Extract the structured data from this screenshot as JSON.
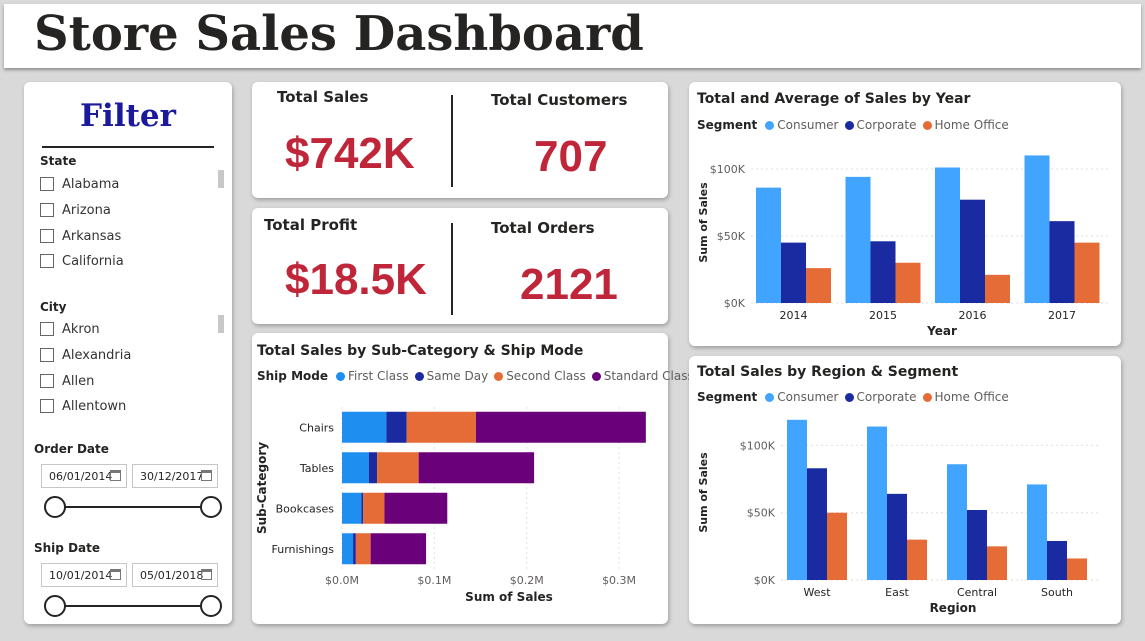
{
  "title": "Store Sales Dashboard",
  "filter": {
    "title": "Filter",
    "state": {
      "label": "State",
      "items": [
        "Alabama",
        "Arizona",
        "Arkansas",
        "California"
      ]
    },
    "city": {
      "label": "City",
      "items": [
        "Akron",
        "Alexandria",
        "Allen",
        "Allentown"
      ]
    },
    "order_date": {
      "label": "Order Date",
      "start": "06/01/2014",
      "end": "30/12/2017"
    },
    "ship_date": {
      "label": "Ship Date",
      "start": "10/01/2014",
      "end": "05/01/2018"
    }
  },
  "kpis": {
    "total_sales": {
      "label": "Total Sales",
      "value": "$742K"
    },
    "total_customers": {
      "label": "Total Customers",
      "value": "707"
    },
    "total_profit": {
      "label": "Total Profit",
      "value": "$18.5K"
    },
    "total_orders": {
      "label": "Total Orders",
      "value": "2121"
    }
  },
  "colors": {
    "consumer": "#41a4ff",
    "corporate": "#1a2aa0",
    "home_office": "#e66c37",
    "first_class": "#1f8ef1",
    "same_day": "#1a2aa0",
    "second_class": "#e66c37",
    "standard_class": "#6b007b",
    "kpi_value": "#c0263a"
  },
  "chart_data": [
    {
      "id": "sales_by_year",
      "type": "bar",
      "title": "Total and Average of Sales by Year",
      "legend_title": "Segment",
      "xlabel": "Year",
      "ylabel": "Sum of Sales",
      "categories": [
        "2014",
        "2015",
        "2016",
        "2017"
      ],
      "series": [
        {
          "name": "Consumer",
          "values": [
            86000,
            94000,
            101000,
            110000
          ]
        },
        {
          "name": "Corporate",
          "values": [
            45000,
            46000,
            77000,
            61000
          ]
        },
        {
          "name": "Home Office",
          "values": [
            26000,
            30000,
            21000,
            45000
          ]
        }
      ],
      "yticks": [
        "$0K",
        "$50K",
        "$100K"
      ],
      "ylim": [
        0,
        120000
      ],
      "grid": true
    },
    {
      "id": "sales_by_subcategory",
      "type": "bar",
      "orientation": "horizontal",
      "stacked": true,
      "title": "Total Sales by Sub-Category & Ship Mode",
      "legend_title": "Ship Mode",
      "xlabel": "Sum of Sales",
      "ylabel": "Sub-Category",
      "categories": [
        "Chairs",
        "Tables",
        "Bookcases",
        "Furnishings"
      ],
      "series": [
        {
          "name": "First Class",
          "values": [
            48000,
            29000,
            21000,
            12000
          ]
        },
        {
          "name": "Same Day",
          "values": [
            22000,
            9000,
            2000,
            3000
          ]
        },
        {
          "name": "Second Class",
          "values": [
            75000,
            45000,
            23000,
            16000
          ]
        },
        {
          "name": "Standard Class",
          "values": [
            184000,
            125000,
            68000,
            60000
          ]
        }
      ],
      "xticks": [
        "$0.0M",
        "$0.1M",
        "$0.2M",
        "$0.3M"
      ],
      "xlim": [
        0,
        340000
      ],
      "grid": true
    },
    {
      "id": "sales_by_region",
      "type": "bar",
      "title": "Total Sales by Region & Segment",
      "legend_title": "Segment",
      "xlabel": "Region",
      "ylabel": "Sum of Sales",
      "categories": [
        "West",
        "East",
        "Central",
        "South"
      ],
      "series": [
        {
          "name": "Consumer",
          "values": [
            119000,
            114000,
            86000,
            71000
          ]
        },
        {
          "name": "Corporate",
          "values": [
            83000,
            64000,
            52000,
            29000
          ]
        },
        {
          "name": "Home Office",
          "values": [
            50000,
            30000,
            25000,
            16000
          ]
        }
      ],
      "yticks": [
        "$0K",
        "$50K",
        "$100K"
      ],
      "ylim": [
        0,
        130000
      ],
      "grid": true
    }
  ]
}
